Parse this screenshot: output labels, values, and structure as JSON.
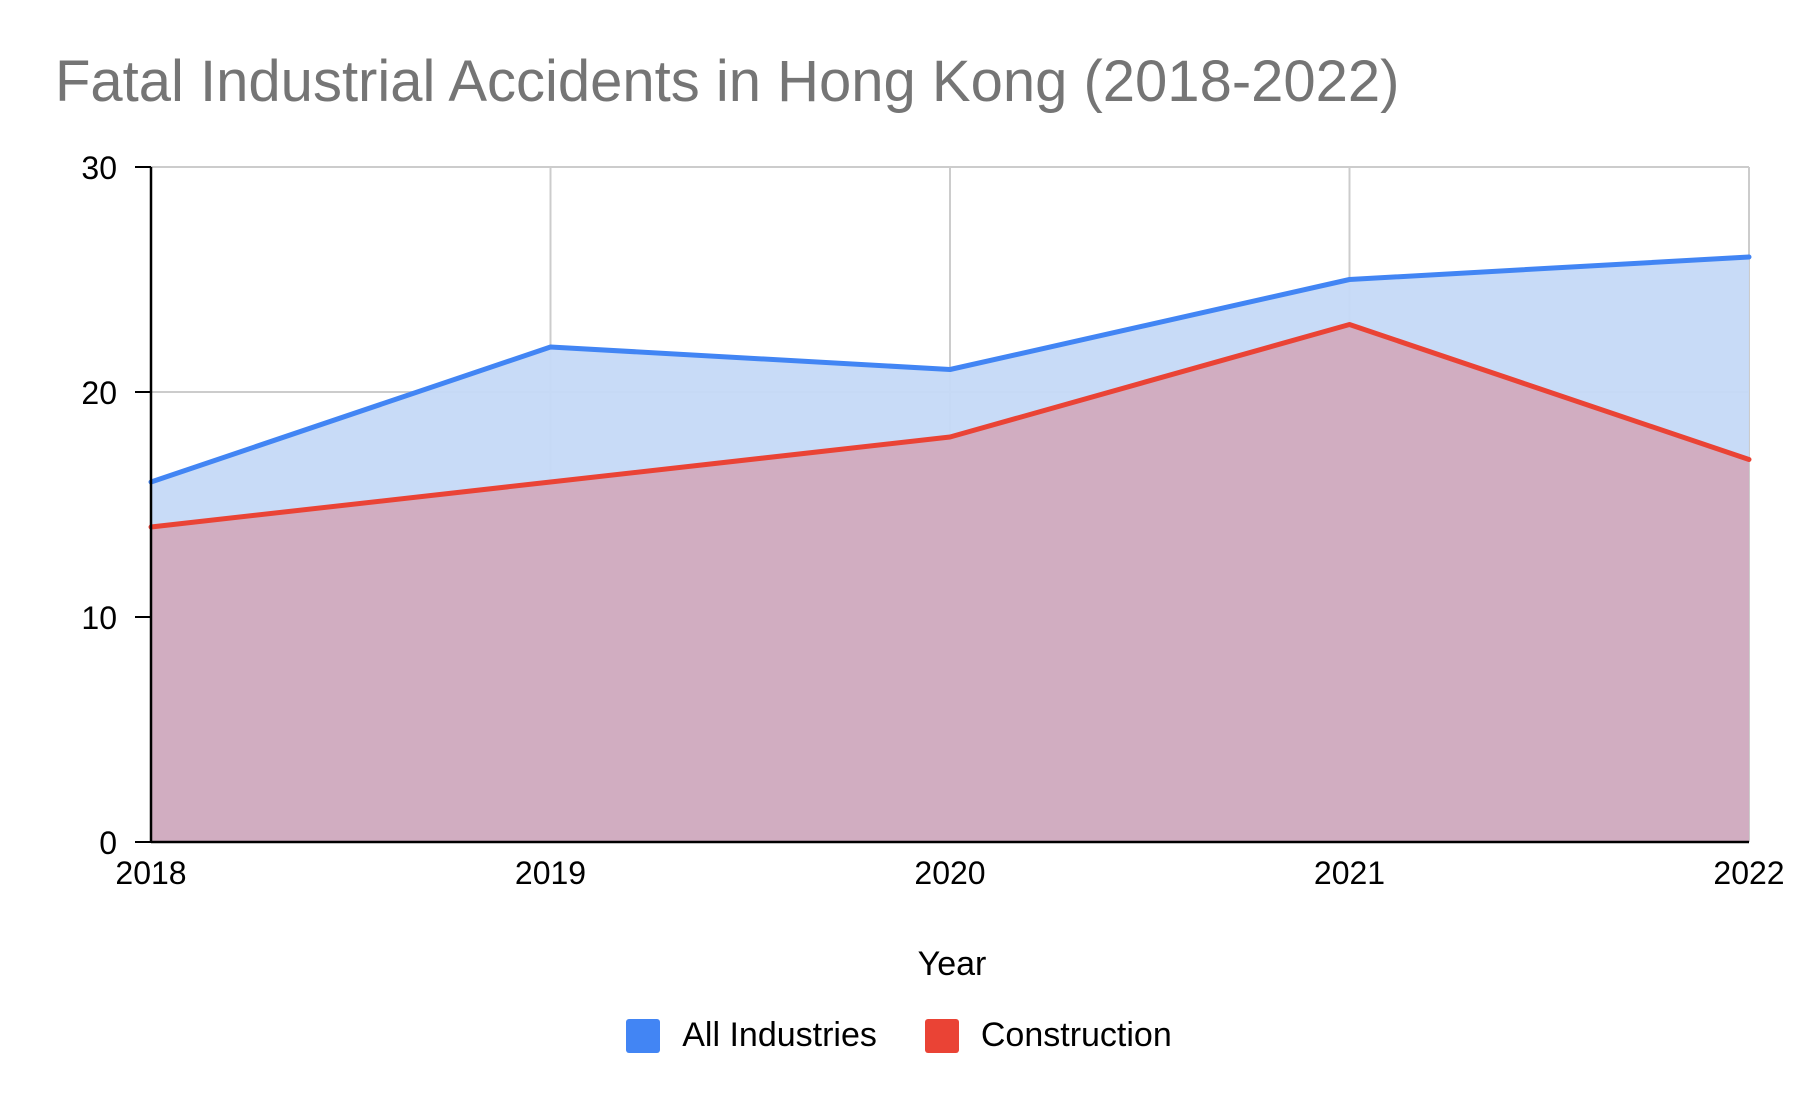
{
  "chart_data": {
    "type": "area",
    "title": "Fatal Industrial Accidents in Hong Kong (2018-2022)",
    "xlabel": "Year",
    "ylabel": "",
    "categories": [
      "2018",
      "2019",
      "2020",
      "2021",
      "2022"
    ],
    "ylim": [
      0,
      30
    ],
    "yticks": [
      "0",
      "10",
      "20",
      "30"
    ],
    "grid": true,
    "legend_position": "bottom",
    "series": [
      {
        "name": "All Industries",
        "values": [
          16,
          22,
          21,
          25,
          26
        ],
        "color": "#4285f4",
        "fill": "#c5d9f7"
      },
      {
        "name": "Construction",
        "values": [
          14,
          16,
          18,
          23,
          17
        ],
        "color": "#ea4335",
        "fill": "#d2abbe"
      }
    ]
  }
}
